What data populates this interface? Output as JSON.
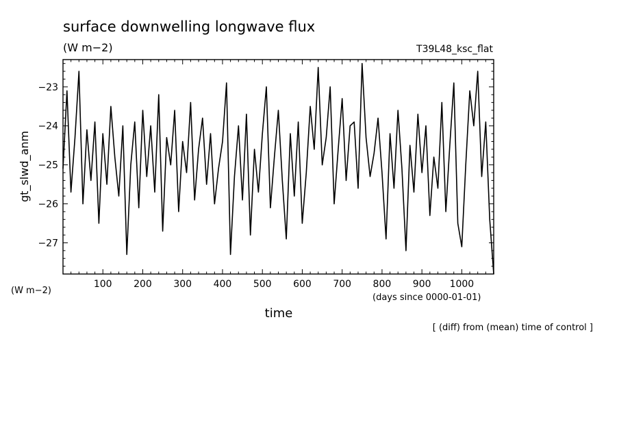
{
  "chart_data": {
    "type": "line",
    "title": "surface downwelling longwave flux",
    "title_units": "(W m−2)",
    "run_label": "T39L48_ksc_flat",
    "xlabel": "time",
    "xlabel_units": "(days since 0000-01-01)",
    "ylabel": "gt_slwd_anm",
    "ylabel_units": "(W m−2)",
    "footnote": "[ (diff) from (mean) time of control ]",
    "xlim": [
      0,
      1080
    ],
    "ylim": [
      -27.8,
      -22.3
    ],
    "xticks": [
      100,
      200,
      300,
      400,
      500,
      600,
      700,
      800,
      900,
      1000
    ],
    "yticks": [
      -27,
      -26,
      -25,
      -24,
      -23
    ],
    "ytick_labels": [
      "−27",
      "−26",
      "−25",
      "−24",
      "−23"
    ],
    "line_color": "#000000",
    "series": [
      {
        "x": [
          0,
          10,
          20,
          30,
          40,
          50,
          60,
          70,
          80,
          90,
          100,
          110,
          120,
          130,
          140,
          150,
          160,
          170,
          180,
          190,
          200,
          210,
          220,
          230,
          240,
          250,
          260,
          270,
          280,
          290,
          300,
          310,
          320,
          330,
          340,
          350,
          360,
          370,
          380,
          390,
          400,
          410,
          420,
          430,
          440,
          450,
          460,
          470,
          480,
          490,
          500,
          510,
          520,
          530,
          540,
          550,
          560,
          570,
          580,
          590,
          600,
          610,
          620,
          630,
          640,
          650,
          660,
          670,
          680,
          690,
          700,
          710,
          720,
          730,
          740,
          750,
          760,
          770,
          780,
          790,
          800,
          810,
          820,
          830,
          840,
          850,
          860,
          870,
          880,
          890,
          900,
          910,
          920,
          930,
          940,
          950,
          960,
          970,
          980,
          990,
          1000,
          1010,
          1020,
          1030,
          1040,
          1050,
          1060,
          1070,
          1080
        ],
        "values": [
          -25.1,
          -23.1,
          -25.7,
          -24.3,
          -22.6,
          -26.0,
          -24.1,
          -25.4,
          -23.9,
          -26.5,
          -24.2,
          -25.5,
          -23.5,
          -24.8,
          -25.8,
          -24.0,
          -27.3,
          -25.0,
          -23.9,
          -26.1,
          -23.6,
          -25.3,
          -24.0,
          -25.7,
          -23.2,
          -26.7,
          -24.3,
          -25.0,
          -23.6,
          -26.2,
          -24.4,
          -25.2,
          -23.4,
          -25.9,
          -24.6,
          -23.8,
          -25.5,
          -24.2,
          -26.0,
          -25.1,
          -24.4,
          -22.9,
          -27.3,
          -25.3,
          -24.0,
          -25.9,
          -23.7,
          -26.8,
          -24.6,
          -25.7,
          -24.2,
          -23.0,
          -26.1,
          -24.8,
          -23.6,
          -25.4,
          -26.9,
          -24.2,
          -25.8,
          -23.9,
          -26.5,
          -25.2,
          -23.5,
          -24.6,
          -22.5,
          -25.0,
          -24.3,
          -23.0,
          -26.0,
          -24.6,
          -23.3,
          -25.4,
          -24.0,
          -23.9,
          -25.6,
          -22.4,
          -24.3,
          -25.3,
          -24.7,
          -23.8,
          -25.2,
          -26.9,
          -24.2,
          -25.6,
          -23.6,
          -25.1,
          -27.2,
          -24.5,
          -25.7,
          -23.7,
          -25.2,
          -24.0,
          -26.3,
          -24.8,
          -25.6,
          -23.4,
          -26.2,
          -24.5,
          -22.9,
          -26.5,
          -27.1,
          -25.0,
          -23.1,
          -24.0,
          -22.6,
          -25.3,
          -23.9,
          -26.4,
          -27.8
        ]
      }
    ]
  }
}
